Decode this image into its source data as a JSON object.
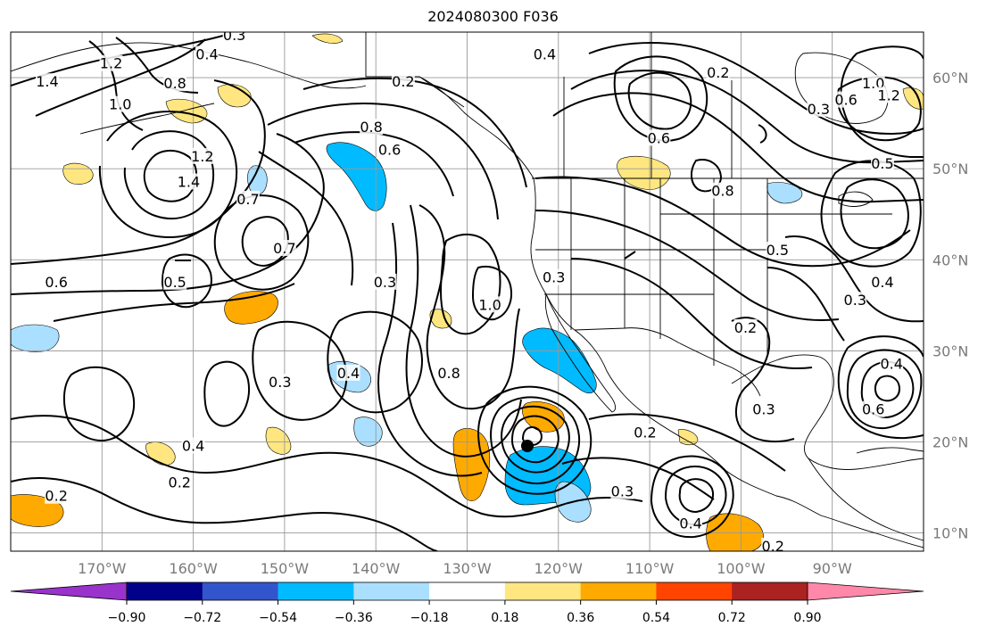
{
  "title": "2024080300 F036",
  "map": {
    "lon_range": [
      -180,
      -80
    ],
    "lat_range": [
      8,
      65
    ],
    "lon_ticks": [
      {
        "value": -170,
        "label": "170°W"
      },
      {
        "value": -160,
        "label": "160°W"
      },
      {
        "value": -150,
        "label": "150°W"
      },
      {
        "value": -140,
        "label": "140°W"
      },
      {
        "value": -130,
        "label": "130°W"
      },
      {
        "value": -120,
        "label": "120°W"
      },
      {
        "value": -110,
        "label": "110°W"
      },
      {
        "value": -100,
        "label": "100°W"
      },
      {
        "value": -90,
        "label": "90°W"
      }
    ],
    "lat_ticks": [
      {
        "value": 60,
        "label": "60°N"
      },
      {
        "value": 50,
        "label": "50°N"
      },
      {
        "value": 40,
        "label": "40°N"
      },
      {
        "value": 30,
        "label": "30°N"
      },
      {
        "value": 20,
        "label": "20°N"
      },
      {
        "value": 10,
        "label": "10°N"
      }
    ],
    "grid": true,
    "contour_labels": [
      {
        "text": "1.4",
        "lon": -176,
        "lat": 59.5
      },
      {
        "text": "1.2",
        "lon": -169,
        "lat": 61.5
      },
      {
        "text": "1.0",
        "lon": -168,
        "lat": 57
      },
      {
        "text": "0.8",
        "lon": -162,
        "lat": 59.3
      },
      {
        "text": "0.4",
        "lon": -158.5,
        "lat": 62.5
      },
      {
        "text": "0.3",
        "lon": -155.5,
        "lat": 64.6
      },
      {
        "text": "1.2",
        "lon": -159,
        "lat": 51.3
      },
      {
        "text": "1.4",
        "lon": -160.5,
        "lat": 48.5
      },
      {
        "text": "0.7",
        "lon": -154,
        "lat": 46.6
      },
      {
        "text": "0.7",
        "lon": -150,
        "lat": 41.2
      },
      {
        "text": "0.6",
        "lon": -175,
        "lat": 37.5
      },
      {
        "text": "0.5",
        "lon": -162,
        "lat": 37.5
      },
      {
        "text": "0.8",
        "lon": -140.5,
        "lat": 54.5
      },
      {
        "text": "0.6",
        "lon": -138.5,
        "lat": 52
      },
      {
        "text": "0.2",
        "lon": -137,
        "lat": 59.5
      },
      {
        "text": "0.4",
        "lon": -121.5,
        "lat": 62.5
      },
      {
        "text": "0.2",
        "lon": -102.5,
        "lat": 60.5
      },
      {
        "text": "0.6",
        "lon": -109,
        "lat": 53.3
      },
      {
        "text": "0.8",
        "lon": -102,
        "lat": 47.5
      },
      {
        "text": "0.3",
        "lon": -91.5,
        "lat": 56.5
      },
      {
        "text": "0.6",
        "lon": -88.5,
        "lat": 57.5
      },
      {
        "text": "1.0",
        "lon": -85.5,
        "lat": 59.3
      },
      {
        "text": "1.2",
        "lon": -83.8,
        "lat": 58
      },
      {
        "text": "0.5",
        "lon": -84.5,
        "lat": 50.5
      },
      {
        "text": "0.5",
        "lon": -96,
        "lat": 41
      },
      {
        "text": "0.3",
        "lon": -87.5,
        "lat": 35.5
      },
      {
        "text": "0.4",
        "lon": -84.5,
        "lat": 37.5
      },
      {
        "text": "0.2",
        "lon": -99.5,
        "lat": 32.5
      },
      {
        "text": "0.3",
        "lon": -97.5,
        "lat": 23.5
      },
      {
        "text": "0.6",
        "lon": -85.5,
        "lat": 23.5
      },
      {
        "text": "0.4",
        "lon": -83.5,
        "lat": 28.5
      },
      {
        "text": "0.3",
        "lon": -120.5,
        "lat": 38
      },
      {
        "text": "1.0",
        "lon": -127.5,
        "lat": 35
      },
      {
        "text": "0.8",
        "lon": -132,
        "lat": 27.5
      },
      {
        "text": "0.2",
        "lon": -110.5,
        "lat": 21
      },
      {
        "text": "0.3",
        "lon": -113,
        "lat": 14.5
      },
      {
        "text": "0.4",
        "lon": -105.5,
        "lat": 11
      },
      {
        "text": "0.2",
        "lon": -96.5,
        "lat": 8.5
      },
      {
        "text": "0.3",
        "lon": -150.5,
        "lat": 26.5
      },
      {
        "text": "0.4",
        "lon": -143,
        "lat": 27.5
      },
      {
        "text": "0.4",
        "lon": -160,
        "lat": 19.5
      },
      {
        "text": "0.2",
        "lon": -161.5,
        "lat": 15.5
      },
      {
        "text": "0.2",
        "lon": -175,
        "lat": 14
      },
      {
        "text": "0.3",
        "lon": -139,
        "lat": 37.5
      }
    ],
    "colorbar": {
      "colors": [
        "#9933cc",
        "#000088",
        "#3355cc",
        "#00bbff",
        "#aadfff",
        "#ffffff",
        "#ffe680",
        "#ffaa00",
        "#ff4400",
        "#aa2222",
        "#ff88aa"
      ],
      "ticks": [
        {
          "value": -0.9,
          "label": "−0.90"
        },
        {
          "value": -0.72,
          "label": "−0.72"
        },
        {
          "value": -0.54,
          "label": "−0.54"
        },
        {
          "value": -0.36,
          "label": "−0.36"
        },
        {
          "value": -0.18,
          "label": "−0.18"
        },
        {
          "value": 0.18,
          "label": "0.18"
        },
        {
          "value": 0.36,
          "label": "0.36"
        },
        {
          "value": 0.54,
          "label": "0.54"
        },
        {
          "value": 0.72,
          "label": "0.72"
        },
        {
          "value": 0.9,
          "label": "0.90"
        }
      ]
    }
  }
}
